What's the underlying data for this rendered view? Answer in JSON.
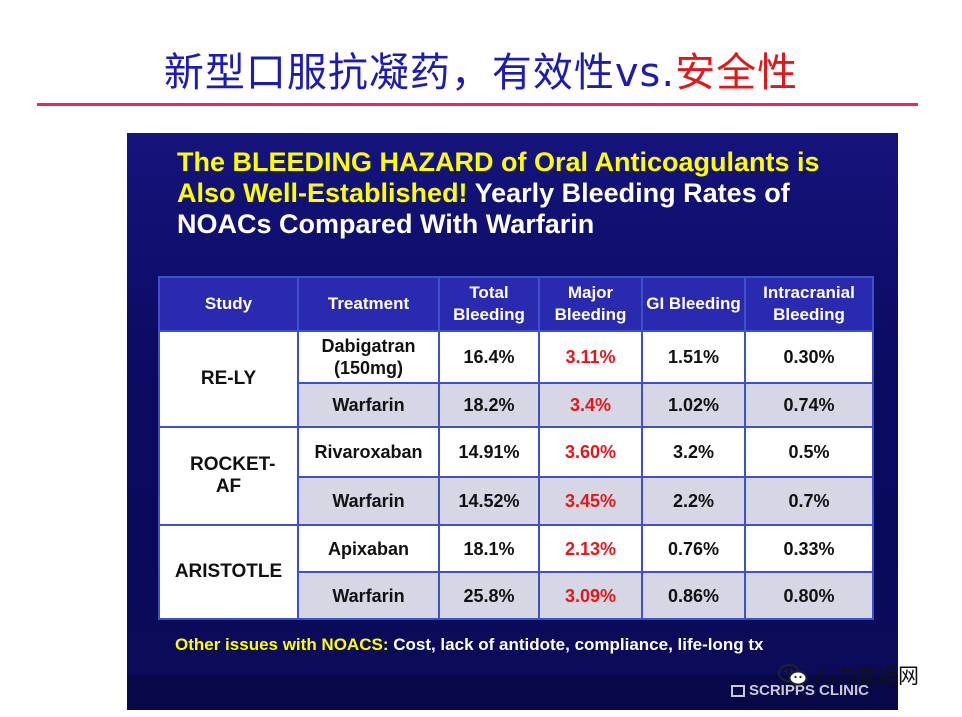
{
  "page": {
    "title_part1": "新型口服抗凝药，有效性vs.",
    "title_part2": "安全性"
  },
  "slide": {
    "heading_highlight": "The BLEEDING HAZARD of Oral Anticoagulants is Also Well-Established!",
    "heading_rest": " Yearly Bleeding Rates of NOACs Compared With Warfarin",
    "table": {
      "headers": [
        "Study",
        "Treatment",
        "Total Bleeding",
        "Major Bleeding",
        "GI Bleeding",
        "Intracranial Bleeding"
      ],
      "studies": [
        {
          "name": "RE-LY",
          "rows": [
            {
              "treatment": "Dabigatran (150mg)",
              "total": "16.4%",
              "major": "3.11%",
              "gi": "1.51%",
              "ich": "0.30%"
            },
            {
              "treatment": "Warfarin",
              "total": "18.2%",
              "major": "3.4%",
              "gi": "1.02%",
              "ich": "0.74%"
            }
          ]
        },
        {
          "name": "ROCKET-AF",
          "rows": [
            {
              "treatment": "Rivaroxaban",
              "total": "14.91%",
              "major": "3.60%",
              "gi": "3.2%",
              "ich": "0.5%"
            },
            {
              "treatment": "Warfarin",
              "total": "14.52%",
              "major": "3.45%",
              "gi": "2.2%",
              "ich": "0.7%"
            }
          ]
        },
        {
          "name": "ARISTOTLE",
          "rows": [
            {
              "treatment": "Apixaban",
              "total": "18.1%",
              "major": "2.13%",
              "gi": "0.76%",
              "ich": "0.33%"
            },
            {
              "treatment": "Warfarin",
              "total": "25.8%",
              "major": "3.09%",
              "gi": "0.86%",
              "ich": "0.80%"
            }
          ]
        }
      ]
    },
    "footer_label": "Other issues with NOACS:",
    "footer_text": " Cost, lack of antidote, compliance, life-long tx",
    "logo_text": "SCRIPPS CLINIC"
  },
  "watermark": {
    "text": "心力衰竭网",
    "icon": "wechat-icon"
  },
  "colors": {
    "title_blue": "#1c1cae",
    "title_red": "#e01818",
    "rule_pink": "#e8246e",
    "slide_bg": "#0a0a60",
    "header_bg": "#2a2ab0",
    "highlight_yellow": "#ffff00",
    "major_red": "#e01818"
  }
}
